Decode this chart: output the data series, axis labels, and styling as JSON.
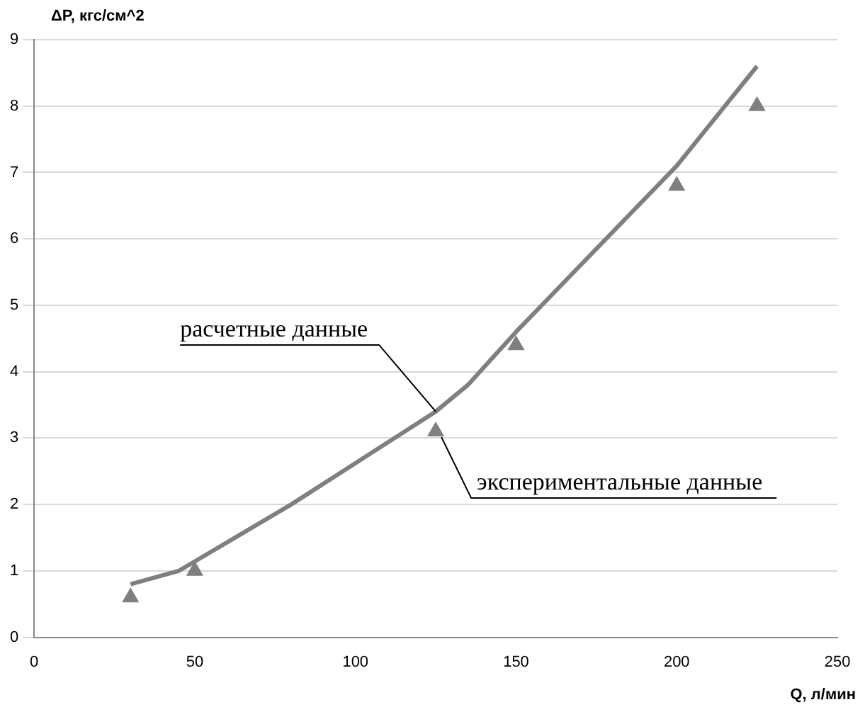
{
  "chart_data": {
    "type": "line",
    "xlabel": "Q, л/мин",
    "ylabel": "ΔP, кгс/см^2",
    "series": [
      {
        "color": "#7f7f7f",
        "x": [
          30,
          45,
          80,
          125,
          135,
          150,
          200,
          225
        ],
        "values": [
          0.8,
          1.0,
          2.0,
          3.4,
          3.8,
          4.6,
          7.1,
          8.6
        ],
        "line_style": "solid",
        "marker": "none"
      },
      {
        "type": "scatter",
        "color": "#7f7f7f",
        "x": [
          30,
          50,
          125,
          150,
          200,
          225
        ],
        "values": [
          0.6,
          1.0,
          3.1,
          4.4,
          6.8,
          8.0
        ],
        "marker": "triangle"
      }
    ],
    "xlim": [
      0,
      250
    ],
    "xticks": [
      0,
      50,
      100,
      150,
      200,
      250
    ],
    "ylim": [
      0,
      9
    ],
    "yticks": [
      0,
      1,
      2,
      3,
      4,
      5,
      6,
      7,
      8,
      9
    ],
    "grid": "y",
    "legend": false,
    "annotations": [
      {
        "text": "расчетные данные",
        "x": 125,
        "y": 3.4
      },
      {
        "text": "экспериментальные данные",
        "x": 125,
        "y": 3.1
      }
    ]
  }
}
